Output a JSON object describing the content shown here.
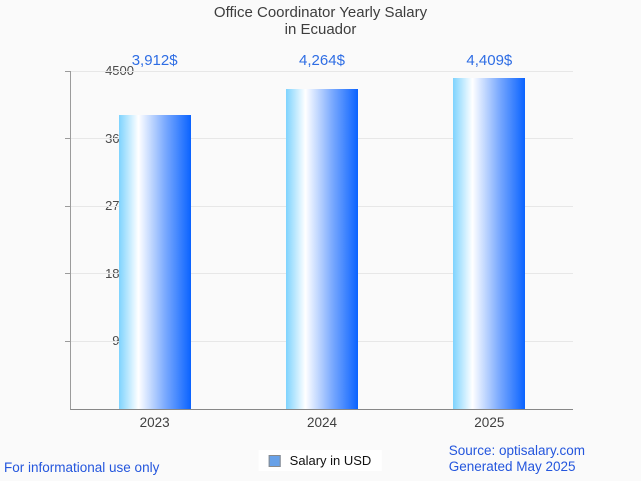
{
  "title": {
    "line1": "Office Coordinator Yearly Salary",
    "line2": "in Ecuador"
  },
  "chart_data": {
    "type": "bar",
    "categories": [
      "2023",
      "2024",
      "2025"
    ],
    "values": [
      3912,
      4264,
      4409
    ],
    "value_labels": [
      "3,912$",
      "4,264$",
      "4,409$"
    ],
    "y_ticks": [
      4500,
      3600,
      2700,
      1800,
      900
    ],
    "ylim": [
      0,
      4500
    ],
    "xlabel": "",
    "ylabel": "",
    "grid": true,
    "legend": {
      "label": "Salary in USD",
      "position": "bottom-center",
      "marker_fill": "#68a1e8",
      "marker_border": "#8a8a8a"
    },
    "bar_gradient_stops": [
      "#7ed3fe 0%",
      "#ffffff 27%",
      "#78a8fe 65%",
      "#0a63ff 100%"
    ]
  },
  "colors": {
    "value_label_blue": "#2e6de4",
    "footer_blue": "#2456dd",
    "axis_gray": "#9b9b9b",
    "grid_gray": "#e7e7e7",
    "title_gray": "#3d3d3d",
    "background": "#fafafa"
  },
  "footer": {
    "disclaimer": "For informational use only",
    "source": "Source: optisalary.com",
    "generated": "Generated May 2025"
  }
}
